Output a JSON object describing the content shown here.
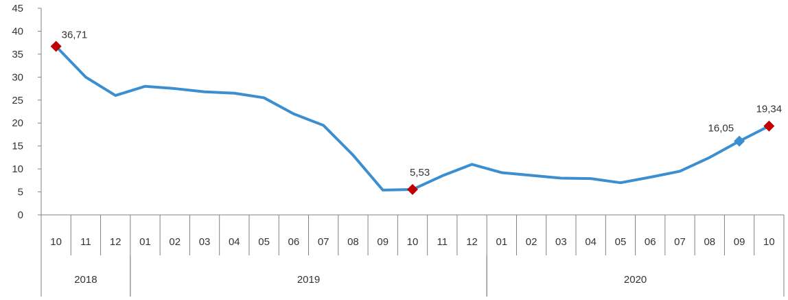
{
  "chart_data": {
    "type": "line",
    "x": [
      "2018-10",
      "2018-11",
      "2018-12",
      "2019-01",
      "2019-02",
      "2019-03",
      "2019-04",
      "2019-05",
      "2019-06",
      "2019-07",
      "2019-08",
      "2019-09",
      "2019-10",
      "2019-11",
      "2019-12",
      "2020-01",
      "2020-02",
      "2020-03",
      "2020-04",
      "2020-05",
      "2020-06",
      "2020-07",
      "2020-08",
      "2020-09",
      "2020-10"
    ],
    "month_labels": [
      "10",
      "11",
      "12",
      "01",
      "02",
      "03",
      "04",
      "05",
      "06",
      "07",
      "08",
      "09",
      "10",
      "11",
      "12",
      "01",
      "02",
      "03",
      "04",
      "05",
      "06",
      "07",
      "08",
      "09",
      "10"
    ],
    "year_groups": [
      {
        "label": "2018",
        "start": 0,
        "end": 2
      },
      {
        "label": "2019",
        "start": 3,
        "end": 14
      },
      {
        "label": "2020",
        "start": 15,
        "end": 24
      }
    ],
    "series": [
      {
        "values": [
          36.71,
          30.0,
          26.0,
          28.0,
          27.5,
          26.8,
          26.5,
          25.5,
          22.0,
          19.5,
          13.0,
          5.4,
          5.53,
          8.5,
          11.0,
          9.2,
          8.6,
          8.0,
          7.9,
          7.0,
          8.2,
          9.5,
          12.5,
          16.05,
          19.34
        ],
        "color": "#3b8ed0"
      }
    ],
    "highlights": [
      {
        "index": 0,
        "label": "36,71",
        "color": "#c00000"
      },
      {
        "index": 12,
        "label": "5,53",
        "color": "#c00000"
      },
      {
        "index": 23,
        "label": "16,05",
        "color": "#3b8ed0"
      },
      {
        "index": 24,
        "label": "19,34",
        "color": "#c00000"
      }
    ],
    "y_ticks": [
      0,
      5,
      10,
      15,
      20,
      25,
      30,
      35,
      40,
      45
    ],
    "ylim": [
      0,
      45
    ],
    "grid": false,
    "title": "",
    "xlabel": "",
    "ylabel": ""
  }
}
